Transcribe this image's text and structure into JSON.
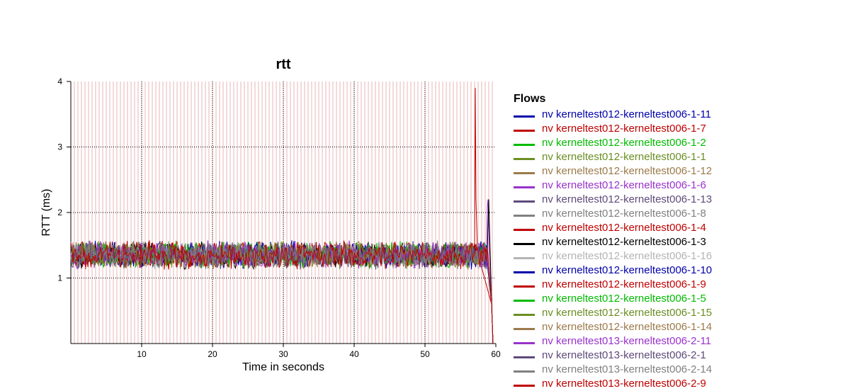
{
  "chart_data": {
    "type": "line",
    "title": "rtt",
    "xlabel": "Time in seconds",
    "ylabel": "RTT (ms)",
    "xlim": [
      0,
      60
    ],
    "ylim": [
      0,
      4
    ],
    "x_ticks": [
      "10",
      "20",
      "30",
      "40",
      "50",
      "60"
    ],
    "y_ticks": [
      "1",
      "2",
      "3",
      "4"
    ],
    "grid": true,
    "legend_title": "Flows",
    "legend_position": "right",
    "series": [
      {
        "name": "nv kerneltest012-kerneltest006-1-11",
        "color": "#0000aa",
        "values_summary": {
          "start_s": 0,
          "end_s": 59,
          "typical_min_ms": 1.1,
          "typical_max_ms": 1.6
        }
      },
      {
        "name": "nv kerneltest012-kerneltest006-1-7",
        "color": "#c00000",
        "values_summary": {
          "start_s": 0,
          "end_s": 59,
          "typical_min_ms": 1.1,
          "typical_max_ms": 1.6
        },
        "spike": {
          "x": 57.1,
          "y": 3.9
        }
      },
      {
        "name": "nv kerneltest012-kerneltest006-1-2",
        "color": "#00bb00",
        "values_summary": {
          "start_s": 0,
          "end_s": 59,
          "typical_min_ms": 1.1,
          "typical_max_ms": 1.6
        }
      },
      {
        "name": "nv kerneltest012-kerneltest006-1-1",
        "color": "#6b8e23",
        "values_summary": {
          "start_s": 0,
          "end_s": 59,
          "typical_min_ms": 1.1,
          "typical_max_ms": 1.6
        }
      },
      {
        "name": "nv kerneltest012-kerneltest006-1-12",
        "color": "#9c7a4a",
        "values_summary": {
          "start_s": 0,
          "end_s": 59,
          "typical_min_ms": 1.1,
          "typical_max_ms": 1.6
        }
      },
      {
        "name": "nv kerneltest012-kerneltest006-1-6",
        "color": "#9932cc",
        "values_summary": {
          "start_s": 0,
          "end_s": 59,
          "typical_min_ms": 1.1,
          "typical_max_ms": 1.6
        },
        "spike": {
          "x": 58.8,
          "y": 2.1
        }
      },
      {
        "name": "nv kerneltest012-kerneltest006-1-13",
        "color": "#5e4a7a",
        "values_summary": {
          "start_s": 0,
          "end_s": 59,
          "typical_min_ms": 1.1,
          "typical_max_ms": 1.6
        }
      },
      {
        "name": "nv kerneltest012-kerneltest006-1-8",
        "color": "#808080",
        "values_summary": {
          "start_s": 0,
          "end_s": 59,
          "typical_min_ms": 1.1,
          "typical_max_ms": 1.6
        }
      },
      {
        "name": "nv kerneltest012-kerneltest006-1-4",
        "color": "#c00000",
        "values_summary": {
          "start_s": 0,
          "end_s": 59,
          "typical_min_ms": 1.1,
          "typical_max_ms": 1.6
        }
      },
      {
        "name": "nv kerneltest012-kerneltest006-1-3",
        "color": "#000000",
        "values_summary": {
          "start_s": 0,
          "end_s": 59,
          "typical_min_ms": 1.1,
          "typical_max_ms": 1.6
        },
        "spike": {
          "x": 58.9,
          "y": 1.8
        }
      },
      {
        "name": "nv kerneltest012-kerneltest006-1-16",
        "color": "#b4b4b4",
        "values_summary": {
          "start_s": 0,
          "end_s": 59,
          "typical_min_ms": 1.1,
          "typical_max_ms": 1.6
        }
      },
      {
        "name": "nv kerneltest012-kerneltest006-1-10",
        "color": "#0000aa",
        "values_summary": {
          "start_s": 0,
          "end_s": 59,
          "typical_min_ms": 1.1,
          "typical_max_ms": 1.6
        }
      },
      {
        "name": "nv kerneltest012-kerneltest006-1-9",
        "color": "#c00000",
        "values_summary": {
          "start_s": 0,
          "end_s": 59,
          "typical_min_ms": 1.1,
          "typical_max_ms": 1.6
        }
      },
      {
        "name": "nv kerneltest012-kerneltest006-1-5",
        "color": "#00bb00",
        "values_summary": {
          "start_s": 0,
          "end_s": 59,
          "typical_min_ms": 1.1,
          "typical_max_ms": 1.6
        }
      },
      {
        "name": "nv kerneltest012-kerneltest006-1-15",
        "color": "#6b8e23",
        "values_summary": {
          "start_s": 0,
          "end_s": 59,
          "typical_min_ms": 1.1,
          "typical_max_ms": 1.6
        }
      },
      {
        "name": "nv kerneltest012-kerneltest006-1-14",
        "color": "#9c7a4a",
        "values_summary": {
          "start_s": 0,
          "end_s": 59,
          "typical_min_ms": 1.1,
          "typical_max_ms": 1.6
        }
      },
      {
        "name": "nv kerneltest013-kerneltest006-2-11",
        "color": "#9932cc",
        "values_summary": {
          "start_s": 0,
          "end_s": 59,
          "typical_min_ms": 1.1,
          "typical_max_ms": 1.6
        }
      },
      {
        "name": "nv kerneltest013-kerneltest006-2-1",
        "color": "#5e4a7a",
        "values_summary": {
          "start_s": 0,
          "end_s": 59,
          "typical_min_ms": 1.1,
          "typical_max_ms": 1.6
        }
      },
      {
        "name": "nv kerneltest013-kerneltest006-2-14",
        "color": "#808080",
        "values_summary": {
          "start_s": 0,
          "end_s": 59,
          "typical_min_ms": 1.1,
          "typical_max_ms": 1.6
        }
      },
      {
        "name": "nv kerneltest013-kerneltest006-2-9",
        "color": "#c00000",
        "values_summary": {
          "start_s": 0,
          "end_s": 59,
          "typical_min_ms": 1.1,
          "typical_max_ms": 1.6
        }
      }
    ],
    "background_marker_lines": {
      "color": "#e8b4b4",
      "spacing_s": 0.5
    }
  }
}
